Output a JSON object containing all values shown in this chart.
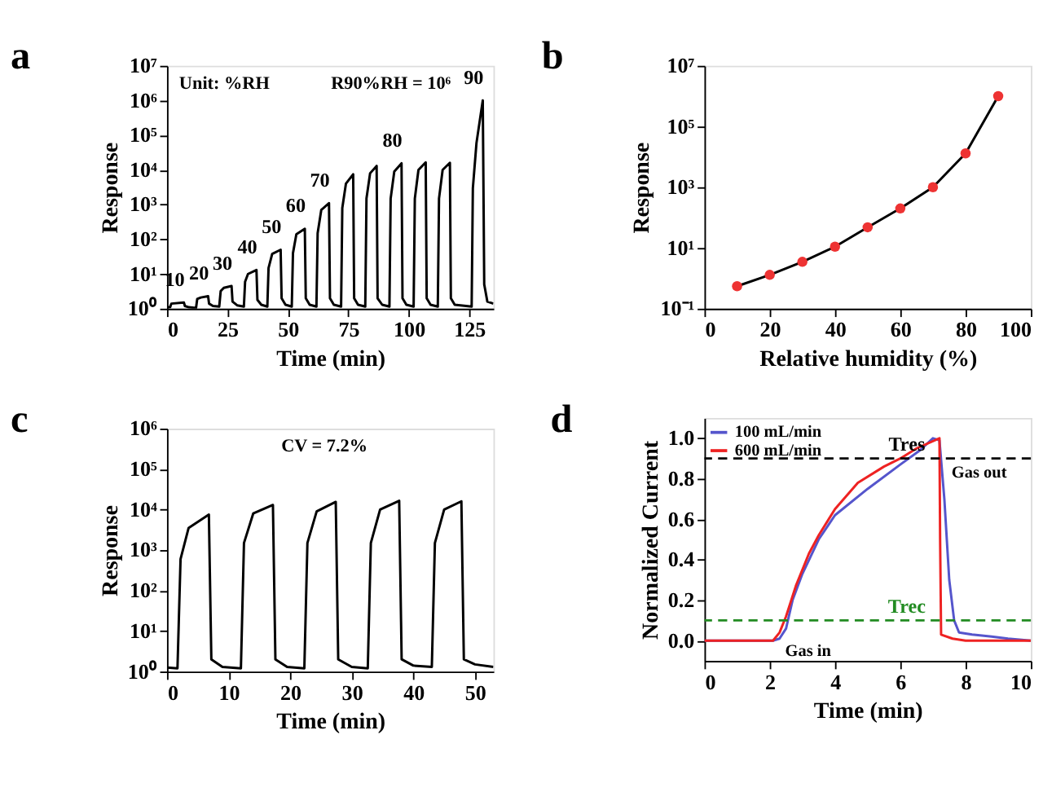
{
  "chart_data": [
    {
      "type": "line",
      "title": "a",
      "xlabel": "Time (min)",
      "ylabel": "Response",
      "log": "y",
      "marker": "none",
      "line_style": "solid",
      "xlim": [
        0,
        135
      ],
      "xticks": [
        0,
        25,
        50,
        75,
        100,
        125
      ],
      "ylim": [
        1,
        10000000
      ],
      "yticks": [
        {
          "value": 1,
          "label": "10⁰"
        },
        {
          "value": 10,
          "label": "10¹"
        },
        {
          "value": 100,
          "label": "10²"
        },
        {
          "value": 1000,
          "label": "10³"
        },
        {
          "value": 10000,
          "label": "10⁴"
        },
        {
          "value": 100000,
          "label": "10⁵"
        },
        {
          "value": 1000000,
          "label": "10⁶"
        },
        {
          "value": 10000000,
          "label": "10⁷"
        }
      ],
      "annotations": [
        "Unit: %RH",
        "R90%RH = 10⁶",
        {
          "text": "10",
          "x": 7,
          "y": 1.5
        },
        {
          "text": "20",
          "x": 17,
          "y": 2.3
        },
        {
          "text": "30",
          "x": 26.7,
          "y": 4.5
        },
        {
          "text": "40",
          "x": 37,
          "y": 13
        },
        {
          "text": "50",
          "x": 47,
          "y": 50
        },
        {
          "text": "60",
          "x": 57,
          "y": 200
        },
        {
          "text": "70",
          "x": 67,
          "y": 1100
        },
        {
          "text": "80",
          "x": 97,
          "y": 15500
        },
        {
          "text": "90",
          "x": 130.6,
          "y": 1000000
        }
      ],
      "series": [
        {
          "color": "#000000",
          "x": [
            0,
            1.3,
            1.8,
            7,
            7.4,
            9,
            12,
            12.5,
            14,
            17,
            17.4,
            19,
            21.6,
            22.2,
            23.5,
            26.7,
            27.1,
            29,
            31.8,
            32.3,
            33.5,
            37,
            37.4,
            39,
            41.5,
            42,
            43.5,
            47,
            47.4,
            49,
            51.6,
            52.1,
            53.5,
            57,
            57.4,
            59,
            61.8,
            62.3,
            63.8,
            67,
            67.4,
            69,
            72,
            72.5,
            74,
            77,
            77.4,
            79,
            82,
            82.5,
            84,
            86.7,
            87.1,
            89,
            92,
            92.5,
            94,
            97,
            97.4,
            99,
            102,
            102.5,
            104,
            107,
            107.4,
            109,
            112,
            112.5,
            114,
            117,
            117.4,
            119,
            126,
            126.5,
            128,
            130.6,
            131.2,
            132.5,
            135
          ],
          "values": [
            1.1,
            1.1,
            1.4,
            1.5,
            1.2,
            1.1,
            1.05,
            1.9,
            2.1,
            2.3,
            1.4,
            1.2,
            1.15,
            3.2,
            4,
            4.5,
            1.6,
            1.25,
            1.15,
            6,
            10,
            13,
            1.8,
            1.3,
            1.15,
            15,
            38,
            50,
            2,
            1.3,
            1.15,
            40,
            140,
            200,
            2,
            1.3,
            1.15,
            150,
            700,
            1100,
            2,
            1.3,
            1.15,
            800,
            4000,
            7500,
            2,
            1.3,
            1.15,
            1500,
            8000,
            13000,
            2,
            1.3,
            1.15,
            1500,
            9000,
            15500,
            2,
            1.3,
            1.15,
            1500,
            10000,
            16500,
            2,
            1.3,
            1.15,
            1500,
            10000,
            16000,
            2,
            1.3,
            1.15,
            3000,
            60000,
            1000000,
            5,
            1.6,
            1.4
          ]
        }
      ]
    },
    {
      "type": "line",
      "title": "b",
      "xlabel": "Relative humidity (%)",
      "ylabel": "Response",
      "log": "y",
      "marker": "circle",
      "line_style": "solid",
      "xlim": [
        0,
        100
      ],
      "xticks": [
        0,
        20,
        40,
        60,
        80,
        100
      ],
      "ylim": [
        0.1,
        10000000
      ],
      "yticks": [
        {
          "value": 0.1,
          "label": "10⁻¹"
        },
        {
          "value": 10,
          "label": "10¹"
        },
        {
          "value": 1000,
          "label": "10³"
        },
        {
          "value": 100000,
          "label": "10⁵"
        },
        {
          "value": 10000000,
          "label": "10⁷"
        }
      ],
      "colors": [
        "#ee3333",
        "#ee3333",
        "#ee3333",
        "#ee3333",
        "#ee3333",
        "#ee3333",
        "#ee3333",
        "#ee3333",
        "#ee3333"
      ],
      "series": [
        {
          "color": "#000000",
          "x": [
            10,
            20,
            30,
            40,
            50,
            60,
            70,
            80,
            90
          ],
          "values": [
            0.55,
            1.3,
            3.5,
            11,
            48,
            200,
            1000,
            13000,
            1000000
          ]
        }
      ]
    },
    {
      "type": "line",
      "title": "c",
      "xlabel": "Time (min)",
      "ylabel": "Response",
      "log": "y",
      "marker": "none",
      "line_style": "solid",
      "xlim": [
        0,
        53
      ],
      "xticks": [
        0,
        10,
        20,
        30,
        40,
        50
      ],
      "ylim": [
        1,
        1000000
      ],
      "yticks": [
        {
          "value": 1,
          "label": "10⁰"
        },
        {
          "value": 10,
          "label": "10¹"
        },
        {
          "value": 100,
          "label": "10²"
        },
        {
          "value": 1000,
          "label": "10³"
        },
        {
          "value": 10000,
          "label": "10⁴"
        },
        {
          "value": 100000,
          "label": "10⁵"
        },
        {
          "value": 1000000,
          "label": "10⁶"
        }
      ],
      "annotations": [
        "CV = 7.2%"
      ],
      "series": [
        {
          "color": "#000000",
          "x": [
            0,
            1.7,
            2.2,
            3.5,
            6.8,
            7.2,
            9,
            12,
            12.5,
            14,
            17.2,
            17.6,
            19.5,
            22.3,
            22.8,
            24.3,
            27.4,
            27.8,
            30,
            32.6,
            33.1,
            34.6,
            37.7,
            38.1,
            40,
            43,
            43.5,
            45,
            47.8,
            48.2,
            50,
            53
          ],
          "values": [
            1.25,
            1.2,
            600,
            3500,
            7500,
            2,
            1.3,
            1.2,
            1500,
            8000,
            13000,
            2,
            1.3,
            1.2,
            1500,
            9000,
            15500,
            2,
            1.3,
            1.2,
            1500,
            10000,
            16500,
            2,
            1.4,
            1.3,
            1500,
            10000,
            16000,
            2,
            1.5,
            1.3
          ]
        }
      ]
    },
    {
      "type": "line",
      "title": "d",
      "xlabel": "Time (min)",
      "ylabel": "Normalized Current",
      "marker": "none",
      "line_style": "solid",
      "legend": "top left",
      "xlim": [
        0,
        10
      ],
      "xticks": [
        0,
        2,
        4,
        6,
        8,
        10
      ],
      "ylim": [
        -0.1,
        1.1
      ],
      "yticks": [
        {
          "value": 0,
          "label": "0.0"
        },
        {
          "value": 0.2,
          "label": "0.2"
        },
        {
          "value": 0.4,
          "label": "0.4"
        },
        {
          "value": 0.6,
          "label": "0.6"
        },
        {
          "value": 0.8,
          "label": "0.8"
        },
        {
          "value": 1,
          "label": "1.0"
        }
      ],
      "ref_lines": [
        {
          "axis": "y",
          "value": 0.9,
          "label": "Tres",
          "color": "#000000",
          "line_style": "dashed"
        },
        {
          "axis": "y",
          "value": 0.1,
          "label": "Trec",
          "color": "#228b22",
          "line_style": "dashed"
        }
      ],
      "annotations": [
        {
          "text": "Gas in",
          "x": 2.1,
          "y": 0
        },
        {
          "text": "Gas out",
          "x": 7.2,
          "y": 1
        }
      ],
      "series": [
        {
          "name": "100 mL/min",
          "color": "#5555cc",
          "x": [
            0,
            2.1,
            2.3,
            2.5,
            2.7,
            3,
            3.5,
            4,
            5,
            6,
            6.6,
            7,
            7.2,
            7.35,
            7.5,
            7.65,
            7.8,
            8.2,
            8.8,
            9.3,
            10
          ],
          "values": [
            0,
            0,
            0.01,
            0.06,
            0.2,
            0.33,
            0.5,
            0.62,
            0.75,
            0.87,
            0.94,
            1,
            0.99,
            0.7,
            0.3,
            0.1,
            0.04,
            0.03,
            0.02,
            0.01,
            0
          ]
        },
        {
          "name": "600 mL/min",
          "color": "#ee2222",
          "x": [
            0,
            2.1,
            2.3,
            2.5,
            2.8,
            3.2,
            3.5,
            4,
            4.7,
            5.5,
            6,
            6.5,
            7.2,
            7.22,
            7.25,
            7.6,
            8,
            10
          ],
          "values": [
            0,
            0,
            0.04,
            0.12,
            0.27,
            0.43,
            0.52,
            0.65,
            0.78,
            0.86,
            0.9,
            0.95,
            1,
            0.5,
            0.03,
            0.01,
            0,
            0
          ]
        }
      ]
    }
  ]
}
